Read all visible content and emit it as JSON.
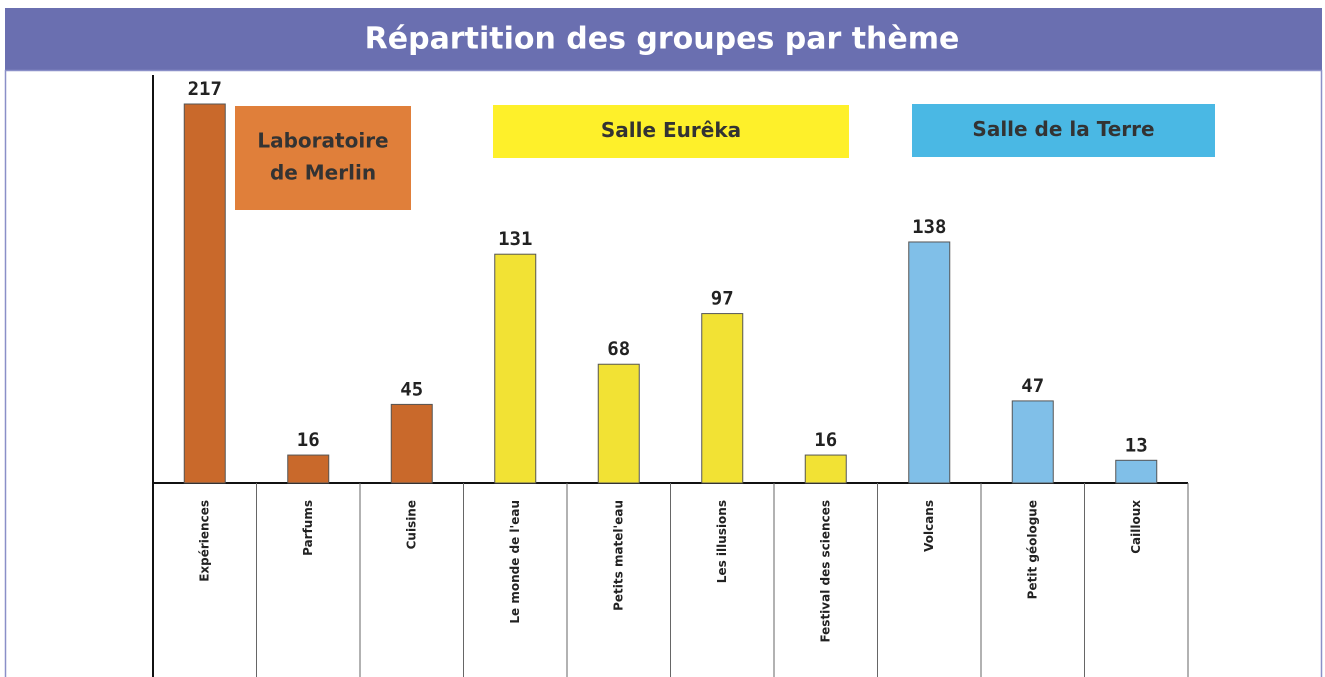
{
  "chart_data": {
    "type": "bar",
    "title": "Répartition des groupes par thème",
    "categories": [
      "Expériences",
      "Parfums",
      "Cuisine",
      "Le monde de l'eau",
      "Petits matel'eau",
      "Les illusions",
      "Festival des sciences",
      "Volcans",
      "Petit géologue",
      "Cailloux"
    ],
    "values": [
      217,
      16,
      45,
      131,
      68,
      97,
      16,
      138,
      47,
      13
    ],
    "colors": [
      "#c9692b",
      "#c9692b",
      "#c9692b",
      "#f2e234",
      "#f2e234",
      "#f2e234",
      "#f2e234",
      "#80bfe8",
      "#80bfe8",
      "#80bfe8"
    ],
    "ylim": [
      0,
      217
    ],
    "groups": [
      {
        "label": [
          "Laboratoire",
          "de Merlin"
        ],
        "color": "#e07f3a"
      },
      {
        "label": [
          "Salle Eurêka"
        ],
        "color": "#fef02a"
      },
      {
        "label": [
          "Salle de la Terre"
        ],
        "color": "#4ab8e4"
      }
    ]
  }
}
